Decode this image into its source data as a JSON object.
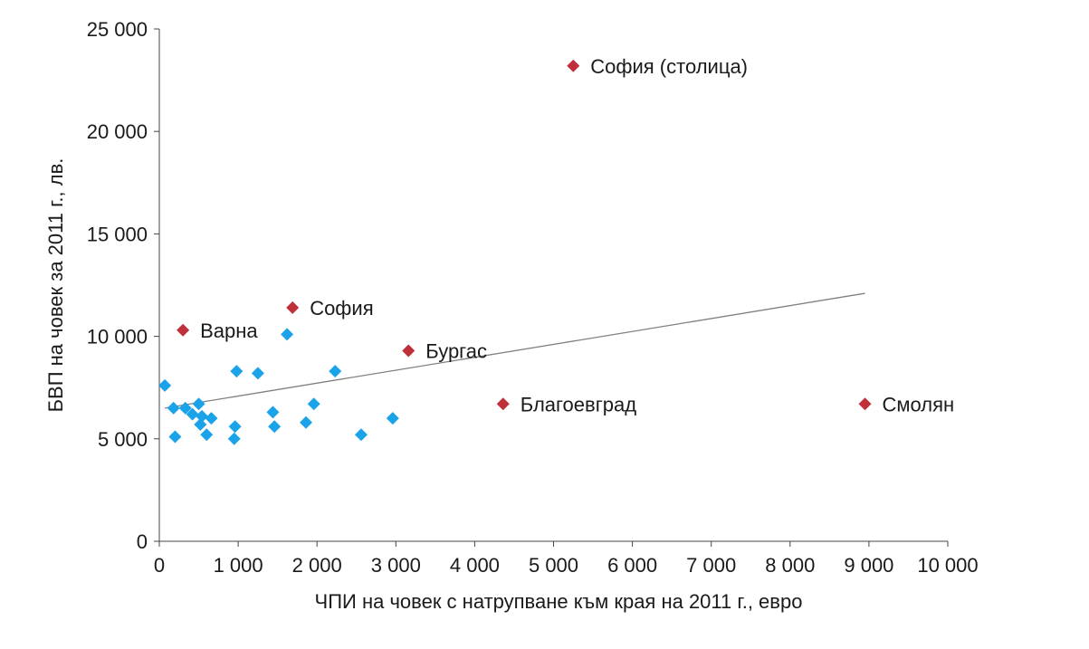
{
  "chart_data": {
    "type": "scatter",
    "title": "",
    "xlabel": "ЧПИ на човек с натрупване към края на 2011 г., евро",
    "ylabel": "БВП на човек за 2011 г., лв.",
    "xlim": [
      0,
      10000
    ],
    "ylim": [
      0,
      25000
    ],
    "x_ticks": [
      0,
      1000,
      2000,
      3000,
      4000,
      5000,
      6000,
      7000,
      8000,
      9000,
      10000
    ],
    "y_ticks": [
      0,
      5000,
      10000,
      15000,
      20000,
      25000
    ],
    "x_tick_labels": [
      "0",
      "1 000",
      "2 000",
      "3 000",
      "4 000",
      "5 000",
      "6 000",
      "7 000",
      "8 000",
      "9 000",
      "10 000"
    ],
    "y_tick_labels": [
      "0",
      "5 000",
      "10 000",
      "15 000",
      "20 000",
      "25 000"
    ],
    "grid": false,
    "series": [
      {
        "color": "#1aa3e8",
        "marker": "diamond",
        "points": [
          {
            "x": 70,
            "y": 7600
          },
          {
            "x": 180,
            "y": 6500
          },
          {
            "x": 200,
            "y": 5100
          },
          {
            "x": 330,
            "y": 6500
          },
          {
            "x": 420,
            "y": 6200
          },
          {
            "x": 500,
            "y": 6700
          },
          {
            "x": 520,
            "y": 5700
          },
          {
            "x": 540,
            "y": 6100
          },
          {
            "x": 600,
            "y": 5200
          },
          {
            "x": 660,
            "y": 6000
          },
          {
            "x": 950,
            "y": 5000
          },
          {
            "x": 960,
            "y": 5600
          },
          {
            "x": 980,
            "y": 8300
          },
          {
            "x": 1250,
            "y": 8200
          },
          {
            "x": 1440,
            "y": 6300
          },
          {
            "x": 1460,
            "y": 5600
          },
          {
            "x": 1620,
            "y": 10100
          },
          {
            "x": 1860,
            "y": 5800
          },
          {
            "x": 1960,
            "y": 6700
          },
          {
            "x": 2230,
            "y": 8300
          },
          {
            "x": 2560,
            "y": 5200
          },
          {
            "x": 2960,
            "y": 6000
          }
        ]
      },
      {
        "color": "#c0303a",
        "marker": "diamond",
        "points": [
          {
            "x": 5250,
            "y": 23200,
            "label": "София (столица)"
          },
          {
            "x": 300,
            "y": 10300,
            "label": "Варна"
          },
          {
            "x": 1690,
            "y": 11400,
            "label": "София"
          },
          {
            "x": 3160,
            "y": 9300,
            "label": "Бургас"
          },
          {
            "x": 4360,
            "y": 6700,
            "label": "Благоевград"
          },
          {
            "x": 8950,
            "y": 6700,
            "label": "Смолян"
          }
        ]
      }
    ],
    "trendline": {
      "color": "#808080",
      "from": {
        "x": 70,
        "y": 6500
      },
      "to": {
        "x": 8950,
        "y": 12100
      }
    }
  }
}
